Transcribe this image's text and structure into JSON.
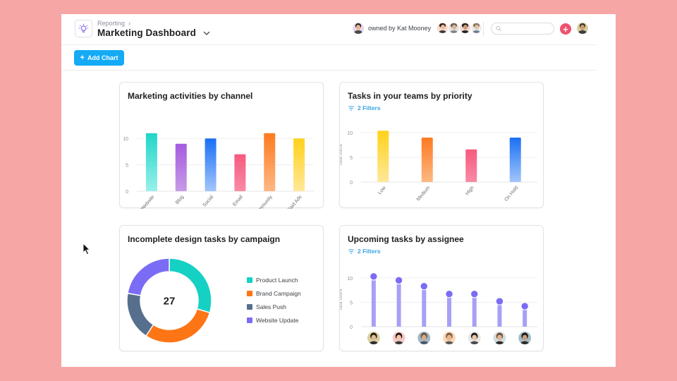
{
  "header": {
    "breadcrumb": "Reporting",
    "breadcrumb_separator": "›",
    "title": "Marketing Dashboard",
    "app_icon": "lightbulb-icon",
    "owner_text": "owned by Kat Mooney",
    "search_placeholder": "",
    "add_button_symbol": "+",
    "members": [
      {
        "name": "member-1",
        "bg": "#f9d9c9",
        "hair": "#2b1d17",
        "skin": "#e8c0a4",
        "shirt": "#3a3a3a"
      },
      {
        "name": "member-2",
        "bg": "#e8e2dc",
        "hair": "#6b5a4c",
        "skin": "#d9b59a",
        "shirt": "#7a8795"
      },
      {
        "name": "member-3",
        "bg": "#f3d6d2",
        "hair": "#1c1c1c",
        "skin": "#c99a7a",
        "shirt": "#222222"
      },
      {
        "name": "member-4",
        "bg": "#ececec",
        "hair": "#8a6e56",
        "skin": "#e2c3a8",
        "shirt": "#6e7f95"
      }
    ],
    "owner_avatar": {
      "bg": "#e6d9ee",
      "hair": "#2d1e18",
      "skin": "#e3b896",
      "shirt": "#4a4a4a"
    },
    "me_avatar": {
      "bg": "#d8cf9e",
      "hair": "#3a2c20",
      "skin": "#c79c7a",
      "shirt": "#3d3d3d"
    }
  },
  "toolbar": {
    "add_chart_label": "Add Chart",
    "add_chart_icon": "+"
  },
  "colors": {
    "accent": "#14aaf5",
    "add_red": "#f0526e",
    "filter_blue": "#3aa3e3"
  },
  "cards": {
    "marketing": {
      "title": "Marketing activities by channel"
    },
    "priority": {
      "title": "Tasks in your teams by priority",
      "filters_label": "2 Filters"
    },
    "design": {
      "title": "Incomplete design tasks by campaign"
    },
    "assignee": {
      "title": "Upcoming tasks by assignee",
      "filters_label": "2 Filters"
    }
  },
  "chart_data": [
    {
      "id": "marketing",
      "type": "bar",
      "title": "Marketing activities by channel",
      "categories": [
        "Website",
        "Blog",
        "Social",
        "Email",
        "Community",
        "Paid Ads"
      ],
      "values": [
        11,
        9,
        10,
        7,
        11,
        10
      ],
      "colors": [
        [
          "#1fd6c8",
          "#9af0ea"
        ],
        [
          "#a55be0",
          "#c79be6"
        ],
        [
          "#1a6ff5",
          "#a2c6fb"
        ],
        [
          "#f55a7e",
          "#f98aa6"
        ],
        [
          "#fd7a20",
          "#fdb883"
        ],
        [
          "#ffd21a",
          "#ffe89a"
        ]
      ],
      "xlabel": "",
      "ylabel": "",
      "yticks": [
        0,
        5,
        10
      ],
      "ylim": [
        0,
        11.5
      ],
      "grid": true
    },
    {
      "id": "priority",
      "type": "bar",
      "title": "Tasks in your teams by priority",
      "categories": [
        "Low",
        "Medium",
        "High",
        "On Hold"
      ],
      "values": [
        10.4,
        9,
        6.6,
        9
      ],
      "colors": [
        [
          "#ffd21a",
          "#ffe89a"
        ],
        [
          "#fd7a20",
          "#fdb883"
        ],
        [
          "#f55a7e",
          "#f98aa6"
        ],
        [
          "#1a6ff5",
          "#a2c6fb"
        ]
      ],
      "xlabel": "",
      "ylabel": "Task count",
      "yticks": [
        0,
        5,
        10
      ],
      "ylim": [
        0,
        11
      ],
      "grid": true
    },
    {
      "id": "design",
      "type": "pie",
      "title": "Incomplete design tasks by campaign",
      "center_label": "27",
      "categories": [
        "Product Launch",
        "Brand Campaign",
        "Sales Push",
        "Website Update"
      ],
      "values": [
        8,
        8,
        5,
        6
      ],
      "colors": [
        "#14d1c4",
        "#fd7514",
        "#566f8d",
        "#7b6cf6"
      ],
      "legend": "right"
    },
    {
      "id": "assignee",
      "type": "bar",
      "style": "lollipop",
      "title": "Upcoming tasks by assignee",
      "categories": [
        "assignee-1",
        "assignee-2",
        "assignee-3",
        "assignee-4",
        "assignee-5",
        "assignee-6",
        "assignee-7"
      ],
      "values": [
        10.3,
        9.5,
        8.3,
        6.7,
        6.7,
        5.2,
        4.2
      ],
      "color": "#7b6cf6",
      "stem_color": "#a89ff7",
      "xlabel": "",
      "ylabel": "Task count",
      "yticks": [
        0,
        5,
        10
      ],
      "ylim": [
        0,
        11
      ],
      "grid": true,
      "assignees": [
        {
          "bg": "#d9d19c",
          "hair": "#1f1712",
          "skin": "#e3bb9a",
          "shirt": "#2d2d2d"
        },
        {
          "bg": "#f6c9cc",
          "hair": "#1d1410",
          "skin": "#f0c9a9",
          "shirt": "#3a3a3a"
        },
        {
          "bg": "#9fb8c8",
          "hair": "#6b5440",
          "skin": "#d7a886",
          "shirt": "#4a5a6a"
        },
        {
          "bg": "#fbd7b3",
          "hair": "#7a5a3e",
          "skin": "#e8b693",
          "shirt": "#5a5a5a"
        },
        {
          "bg": "#e6e6e6",
          "hair": "#1c1613",
          "skin": "#e9c4a5",
          "shirt": "#4a4a4a"
        },
        {
          "bg": "#d3dde2",
          "hair": "#6a4e38",
          "skin": "#e0b696",
          "shirt": "#2e2e2e"
        },
        {
          "bg": "#a3bdc8",
          "hair": "#1b1512",
          "skin": "#c99d7e",
          "shirt": "#2b2b2b"
        }
      ]
    }
  ]
}
